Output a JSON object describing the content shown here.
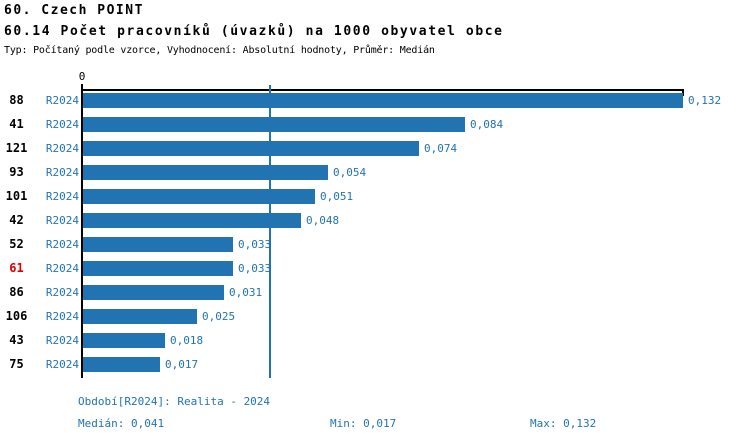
{
  "header": {
    "section_title": "60. Czech POINT",
    "indicator_title": "60.14 Počet pracovníků (úvazků) na 1000 obyvatel obce",
    "indicator_subtitle": "Typ: Počítaný podle vzorce, Vyhodnocení: Absolutní hodnoty, Průměr: Medián"
  },
  "chart_data": {
    "type": "bar",
    "orientation": "horizontal",
    "title": "60.14 Počet pracovníků (úvazků) na 1000 obyvatel obce",
    "axis_origin_label": "0",
    "xlim": [
      0,
      0.132
    ],
    "axis_max": 0.132,
    "categories": [
      "88",
      "41",
      "121",
      "93",
      "101",
      "42",
      "52",
      "61",
      "86",
      "106",
      "43",
      "75"
    ],
    "period_label": "R2024",
    "values": [
      0.132,
      0.084,
      0.074,
      0.054,
      0.051,
      0.048,
      0.033,
      0.033,
      0.031,
      0.025,
      0.018,
      0.017
    ],
    "value_labels": [
      "0,132",
      "0,084",
      "0,074",
      "0,054",
      "0,051",
      "0,048",
      "0,033",
      "0,033",
      "0,031",
      "0,025",
      "0,018",
      "0,017"
    ],
    "highlighted_category": "61",
    "median_value": 0.041,
    "min_value": 0.017,
    "max_value": 0.132,
    "bar_color": "#2273b2",
    "highlight_color": "#dd0000",
    "grid": false,
    "legend_position": "none"
  },
  "footer": {
    "period_line": "Období[R2024]: Realita - 2024",
    "median": {
      "label": "Medián:",
      "value": "0,041"
    },
    "min": {
      "label": "Min:",
      "value": "0,017"
    },
    "max": {
      "label": "Max:",
      "value": "0,132"
    }
  }
}
